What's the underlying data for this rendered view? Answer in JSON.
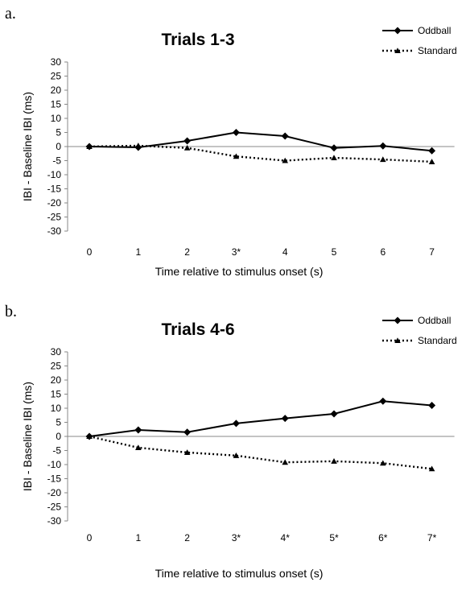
{
  "panels": [
    {
      "letter": "a."
    },
    {
      "letter": "b."
    }
  ],
  "chart_data": [
    {
      "type": "line",
      "title": "Trials 1-3",
      "xlabel": "Time relative to stimulus onset (s)",
      "ylabel": "IBI - Baseline IBI (ms)",
      "categories": [
        "0",
        "1",
        "2",
        "3*",
        "4",
        "5",
        "6",
        "7"
      ],
      "ylim": [
        -30,
        30
      ],
      "yticks": [
        "30",
        "25",
        "20",
        "15",
        "10",
        "5",
        "0",
        "-5",
        "-10",
        "-15",
        "-20",
        "-25",
        "-30"
      ],
      "legend_position": "top-right",
      "series": [
        {
          "name": "Oddball",
          "marker": "diamond",
          "line": "solid",
          "values": [
            0,
            -0.3,
            2,
            5,
            3.7,
            -0.5,
            0.2,
            -1.5
          ]
        },
        {
          "name": "Standard",
          "marker": "triangle",
          "line": "dotted",
          "values": [
            0,
            0.3,
            -0.5,
            -3.5,
            -5,
            -4,
            -4.6,
            -5.4
          ]
        }
      ]
    },
    {
      "type": "line",
      "title": "Trials 4-6",
      "xlabel": "Time relative to stimulus onset (s)",
      "ylabel": "IBI - Baseline IBI (ms)",
      "categories": [
        "0",
        "1",
        "2",
        "3*",
        "4*",
        "5*",
        "6*",
        "7*"
      ],
      "ylim": [
        -30,
        30
      ],
      "yticks": [
        "30",
        "25",
        "20",
        "15",
        "10",
        "5",
        "0",
        "-5",
        "-10",
        "-15",
        "-20",
        "-25",
        "-30"
      ],
      "legend_position": "top-right",
      "series": [
        {
          "name": "Oddball",
          "marker": "diamond",
          "line": "solid",
          "values": [
            0,
            2.3,
            1.5,
            4.6,
            6.4,
            8,
            12.5,
            11
          ]
        },
        {
          "name": "Standard",
          "marker": "triangle",
          "line": "dotted",
          "values": [
            0,
            -4,
            -5.7,
            -6.8,
            -9.2,
            -8.8,
            -9.5,
            -11.5
          ]
        }
      ]
    }
  ]
}
